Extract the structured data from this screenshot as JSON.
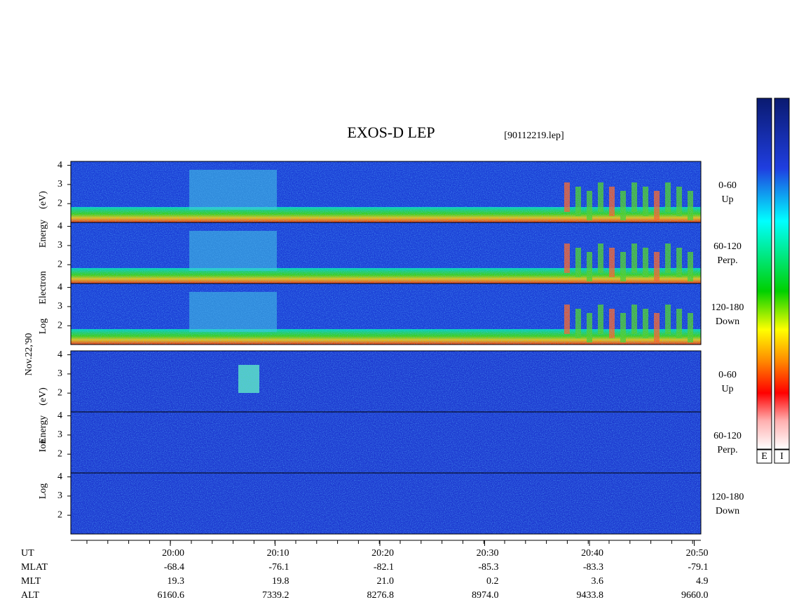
{
  "title": "EXOS-D LEP",
  "file": "[90112219.lep]",
  "date": "Nov.22,'90",
  "yticks": [
    "4",
    "3",
    "2"
  ],
  "groups": [
    {
      "ylabel": [
        "Log",
        "Electron",
        "Energy",
        "(eV)"
      ],
      "panels": [
        {
          "range": "0-60",
          "dir": "Up"
        },
        {
          "range": "60-120",
          "dir": "Perp."
        },
        {
          "range": "120-180",
          "dir": "Down"
        }
      ]
    },
    {
      "ylabel": [
        "Log",
        "Ion",
        "Energy",
        "(eV)"
      ],
      "panels": [
        {
          "range": "0-60",
          "dir": "Up"
        },
        {
          "range": "60-120",
          "dir": "Perp."
        },
        {
          "range": "120-180",
          "dir": "Down"
        }
      ]
    }
  ],
  "rows": [
    {
      "label": "UT",
      "values": [
        "20:00",
        "20:10",
        "20:20",
        "20:30",
        "20:40",
        "20:50"
      ]
    },
    {
      "label": "MLAT",
      "values": [
        "-68.4",
        "-76.1",
        "-82.1",
        "-85.3",
        "-83.3",
        "-79.1"
      ]
    },
    {
      "label": "MLT",
      "values": [
        "19.3",
        "19.8",
        "21.0",
        "0.2",
        "3.6",
        "4.9"
      ]
    },
    {
      "label": "ALT",
      "values": [
        "6160.6",
        "7339.2",
        "8276.8",
        "8974.0",
        "9433.8",
        "9660.0"
      ]
    }
  ],
  "colorbars": [
    "E",
    "I"
  ]
}
